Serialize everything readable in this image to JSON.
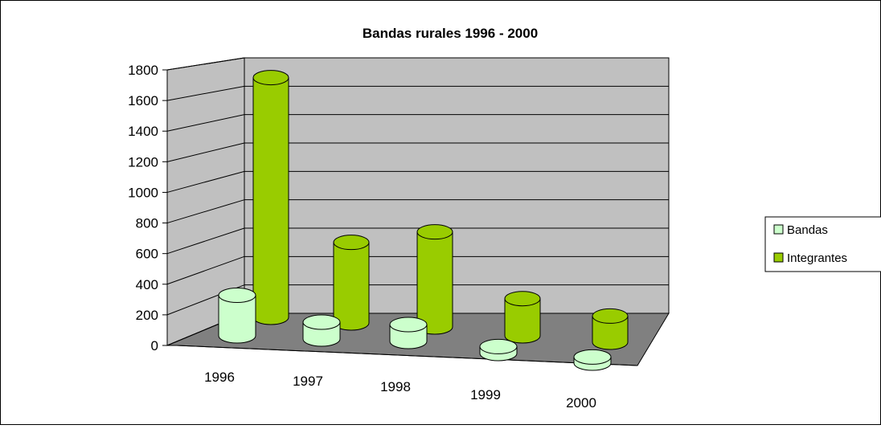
{
  "chart_data": {
    "type": "bar",
    "title": "Bandas rurales 1996 - 2000",
    "categories": [
      "1996",
      "1997",
      "1998",
      "1999",
      "2000"
    ],
    "series": [
      {
        "name": "Bandas",
        "values": [
          265,
          110,
          110,
          45,
          40
        ],
        "color": "#ccffcc"
      },
      {
        "name": "Integrantes",
        "values": [
          1740,
          585,
          690,
          270,
          190
        ],
        "color": "#99cc00"
      }
    ],
    "ylim": [
      0,
      1800
    ],
    "yticks": [
      "0",
      "200",
      "400",
      "600",
      "800",
      "1000",
      "1200",
      "1400",
      "1600",
      "1800"
    ],
    "grid": true,
    "legend": "right",
    "three_d": true,
    "wall_color": "#c0c0c0",
    "floor_color": "#808080"
  }
}
